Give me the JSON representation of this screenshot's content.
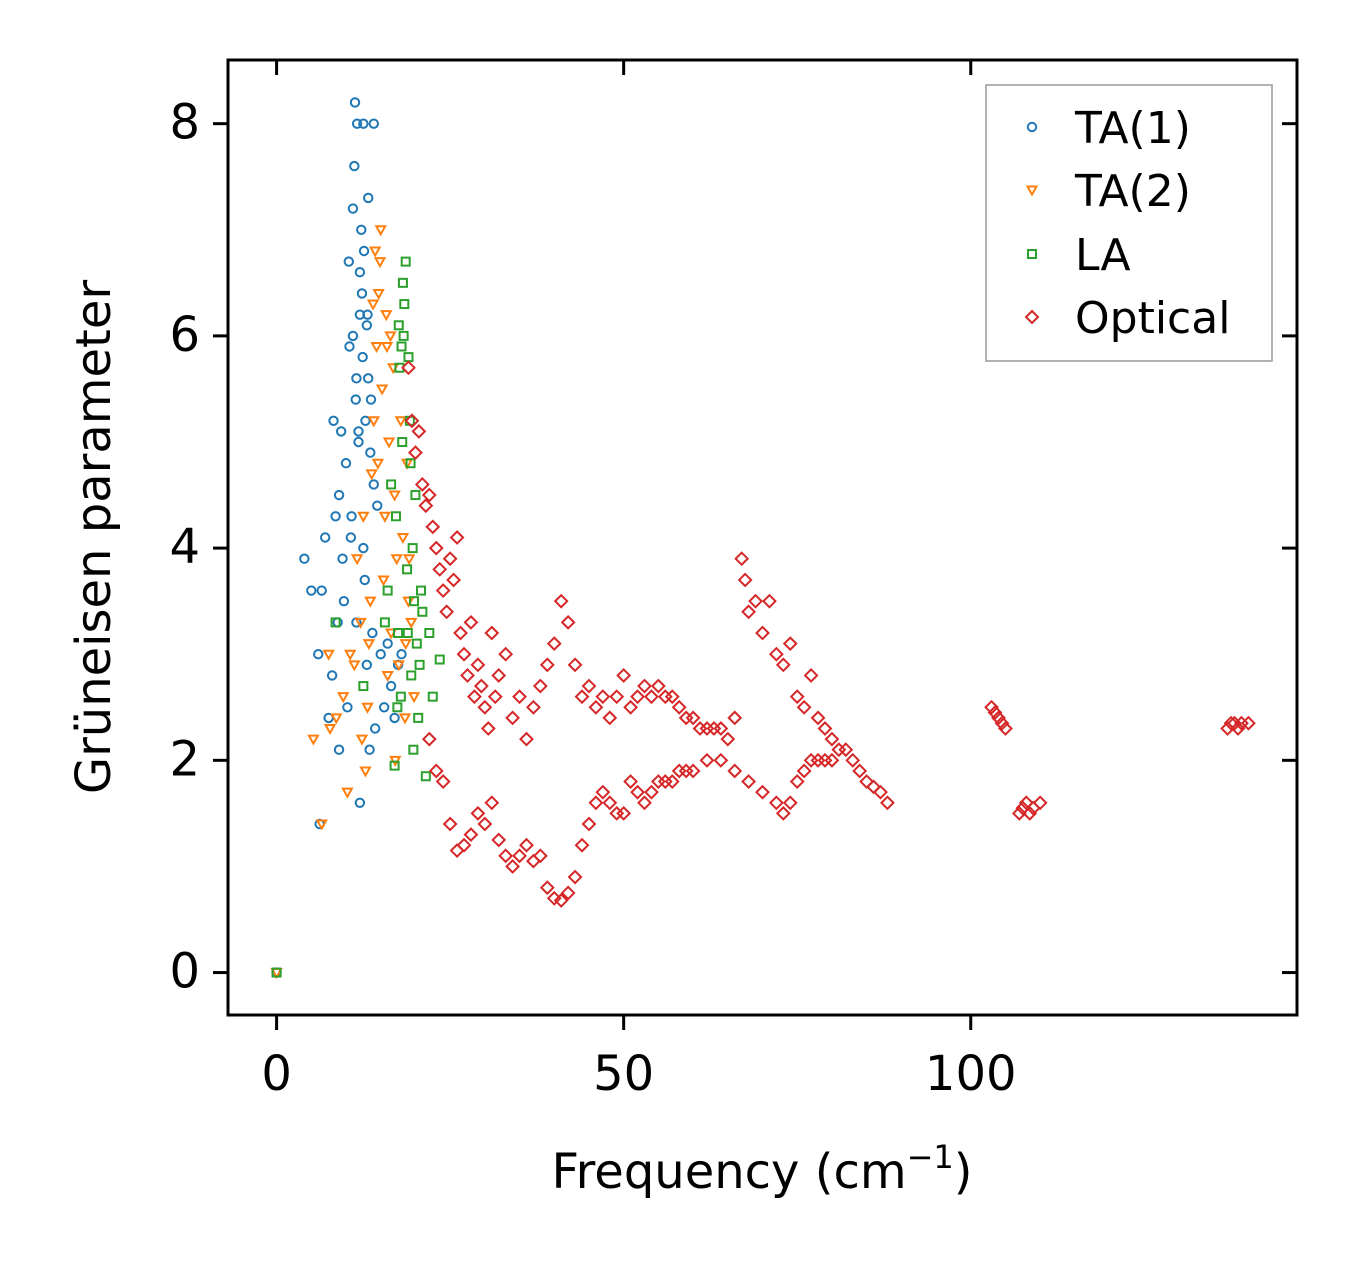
{
  "chart_data": {
    "type": "scatter",
    "title": "",
    "xlabel": "Frequency (cm",
    "xlabel_sup": "−1",
    "xlabel_close": ")",
    "ylabel": "Grüneisen parameter",
    "xlim": [
      -7,
      147
    ],
    "ylim": [
      -0.4,
      8.6
    ],
    "xticks": [
      0,
      50,
      100
    ],
    "yticks": [
      0,
      2,
      4,
      6,
      8
    ],
    "xtick_labels": [
      "0",
      "50",
      "100"
    ],
    "ytick_labels": [
      "0",
      "2",
      "4",
      "6",
      "8"
    ],
    "legend_position": "top-right",
    "series": [
      {
        "name": "TA(1)",
        "marker": "circle",
        "color": "#1f77b4",
        "points": [
          [
            0,
            0
          ],
          [
            4,
            3.9
          ],
          [
            5,
            3.6
          ],
          [
            6,
            3.0
          ],
          [
            6.2,
            1.4
          ],
          [
            6.5,
            3.6
          ],
          [
            7,
            4.1
          ],
          [
            7.5,
            2.4
          ],
          [
            8,
            2.8
          ],
          [
            8.2,
            5.2
          ],
          [
            8.5,
            4.3
          ],
          [
            8.8,
            3.3
          ],
          [
            9,
            2.1
          ],
          [
            9,
            4.5
          ],
          [
            9.3,
            5.1
          ],
          [
            9.5,
            3.9
          ],
          [
            9.7,
            3.5
          ],
          [
            10,
            4.8
          ],
          [
            10.2,
            2.5
          ],
          [
            10.4,
            6.7
          ],
          [
            10.5,
            5.9
          ],
          [
            10.7,
            4.1
          ],
          [
            11,
            7.2
          ],
          [
            11,
            6.0
          ],
          [
            11.2,
            7.6
          ],
          [
            11.3,
            8.2
          ],
          [
            11.5,
            3.3
          ],
          [
            11.5,
            5.6
          ],
          [
            11.6,
            8.0
          ],
          [
            11.8,
            5.1
          ],
          [
            12,
            6.6
          ],
          [
            12,
            6.2
          ],
          [
            12,
            1.6
          ],
          [
            12.2,
            7.0
          ],
          [
            12.3,
            6.4
          ],
          [
            12.4,
            5.8
          ],
          [
            12.5,
            4.0
          ],
          [
            12.5,
            8.0
          ],
          [
            12.7,
            3.7
          ],
          [
            12.8,
            5.2
          ],
          [
            13,
            6.1
          ],
          [
            13,
            2.9
          ],
          [
            13.2,
            5.6
          ],
          [
            13.2,
            7.3
          ],
          [
            13.4,
            2.1
          ],
          [
            13.5,
            4.9
          ],
          [
            13.6,
            5.4
          ],
          [
            13.8,
            3.2
          ],
          [
            14,
            4.6
          ],
          [
            14,
            8.0
          ],
          [
            14.2,
            2.3
          ],
          [
            14.5,
            4.4
          ],
          [
            15,
            3.0
          ],
          [
            15.5,
            2.5
          ],
          [
            16,
            3.1
          ],
          [
            16.5,
            2.7
          ],
          [
            17,
            2.4
          ],
          [
            17.5,
            2.9
          ],
          [
            18,
            3.0
          ],
          [
            11.8,
            5.0
          ],
          [
            10.8,
            4.3
          ],
          [
            12.6,
            6.8
          ],
          [
            13.1,
            6.2
          ],
          [
            11.4,
            5.4
          ]
        ]
      },
      {
        "name": "TA(2)",
        "marker": "triangle-down",
        "color": "#ff7f0e",
        "points": [
          [
            0,
            0
          ],
          [
            5.3,
            2.2
          ],
          [
            6.5,
            1.4
          ],
          [
            7.5,
            3.0
          ],
          [
            7.7,
            2.3
          ],
          [
            8.6,
            2.4
          ],
          [
            9.6,
            2.6
          ],
          [
            10.2,
            1.7
          ],
          [
            10.6,
            3.0
          ],
          [
            11.2,
            2.9
          ],
          [
            11.6,
            3.9
          ],
          [
            12.1,
            3.3
          ],
          [
            12.5,
            4.3
          ],
          [
            12.8,
            1.9
          ],
          [
            13.1,
            2.5
          ],
          [
            13.5,
            3.5
          ],
          [
            13.7,
            4.7
          ],
          [
            14,
            5.2
          ],
          [
            14.2,
            6.8
          ],
          [
            14.4,
            5.9
          ],
          [
            14.6,
            4.8
          ],
          [
            14.7,
            6.4
          ],
          [
            15,
            7.0
          ],
          [
            15.2,
            5.5
          ],
          [
            15.4,
            3.7
          ],
          [
            15.6,
            4.3
          ],
          [
            15.8,
            6.2
          ],
          [
            16,
            2.8
          ],
          [
            16.2,
            5.0
          ],
          [
            16.5,
            3.2
          ],
          [
            16.8,
            5.7
          ],
          [
            17,
            4.5
          ],
          [
            17.3,
            3.9
          ],
          [
            17.6,
            2.9
          ],
          [
            17.9,
            5.2
          ],
          [
            18.2,
            4.1
          ],
          [
            18.5,
            2.4
          ],
          [
            18.8,
            4.8
          ],
          [
            19,
            3.5
          ],
          [
            19.4,
            3.3
          ],
          [
            19.8,
            2.6
          ],
          [
            14.9,
            6.7
          ],
          [
            13.9,
            6.3
          ],
          [
            15.9,
            5.9
          ],
          [
            16.4,
            6.0
          ],
          [
            17.1,
            2.0
          ],
          [
            13.3,
            3.1
          ],
          [
            12.3,
            2.2
          ],
          [
            18.6,
            3.1
          ],
          [
            19.1,
            3.9
          ]
        ]
      },
      {
        "name": "LA",
        "marker": "square",
        "color": "#2ca02c",
        "points": [
          [
            0,
            0
          ],
          [
            8.5,
            3.3
          ],
          [
            12.5,
            2.7
          ],
          [
            15.6,
            3.3
          ],
          [
            16,
            3.6
          ],
          [
            16.5,
            4.6
          ],
          [
            17,
            1.95
          ],
          [
            17.2,
            4.3
          ],
          [
            17.5,
            3.2
          ],
          [
            17.7,
            5.7
          ],
          [
            17.9,
            2.6
          ],
          [
            18,
            5.9
          ],
          [
            18.2,
            6.5
          ],
          [
            18.4,
            6.3
          ],
          [
            18.6,
            6.7
          ],
          [
            18.8,
            3.8
          ],
          [
            19,
            5.8
          ],
          [
            19.2,
            5.2
          ],
          [
            19.4,
            2.8
          ],
          [
            19.6,
            4.0
          ],
          [
            19.8,
            3.5
          ],
          [
            20,
            4.5
          ],
          [
            20.2,
            3.1
          ],
          [
            20.4,
            2.4
          ],
          [
            20.6,
            2.9
          ],
          [
            21,
            3.4
          ],
          [
            21.5,
            1.85
          ],
          [
            22,
            3.2
          ],
          [
            22.5,
            2.6
          ],
          [
            23.5,
            2.95
          ],
          [
            18.1,
            5.0
          ],
          [
            18.3,
            6.0
          ],
          [
            17.6,
            6.1
          ],
          [
            18.9,
            3.2
          ],
          [
            19.3,
            4.8
          ],
          [
            20.8,
            3.6
          ],
          [
            17.4,
            2.5
          ],
          [
            19.7,
            2.1
          ]
        ]
      },
      {
        "name": "Optical",
        "marker": "diamond",
        "color": "#d62728",
        "points": [
          [
            19,
            5.7
          ],
          [
            19.5,
            5.2
          ],
          [
            20,
            4.9
          ],
          [
            20.5,
            5.1
          ],
          [
            21,
            4.6
          ],
          [
            21.5,
            4.4
          ],
          [
            22,
            4.5
          ],
          [
            22.5,
            4.2
          ],
          [
            23,
            4.0
          ],
          [
            23.5,
            3.8
          ],
          [
            24,
            3.6
          ],
          [
            24.5,
            3.4
          ],
          [
            25,
            3.9
          ],
          [
            25.5,
            3.7
          ],
          [
            26,
            4.1
          ],
          [
            26.5,
            3.2
          ],
          [
            27,
            3.0
          ],
          [
            27.5,
            2.8
          ],
          [
            28,
            3.3
          ],
          [
            28.5,
            2.6
          ],
          [
            29,
            2.9
          ],
          [
            29.5,
            2.7
          ],
          [
            30,
            2.5
          ],
          [
            30.5,
            2.3
          ],
          [
            31,
            3.2
          ],
          [
            31.5,
            2.6
          ],
          [
            32,
            2.8
          ],
          [
            33,
            3.0
          ],
          [
            34,
            2.4
          ],
          [
            35,
            2.6
          ],
          [
            36,
            2.2
          ],
          [
            37,
            2.5
          ],
          [
            38,
            2.7
          ],
          [
            39,
            2.9
          ],
          [
            40,
            3.1
          ],
          [
            41,
            3.5
          ],
          [
            42,
            3.3
          ],
          [
            43,
            2.9
          ],
          [
            44,
            2.6
          ],
          [
            45,
            2.7
          ],
          [
            46,
            2.5
          ],
          [
            47,
            2.6
          ],
          [
            48,
            2.4
          ],
          [
            49,
            2.6
          ],
          [
            50,
            2.8
          ],
          [
            51,
            2.5
          ],
          [
            52,
            2.6
          ],
          [
            53,
            2.7
          ],
          [
            54,
            2.6
          ],
          [
            55,
            2.7
          ],
          [
            56,
            2.6
          ],
          [
            57,
            2.6
          ],
          [
            58,
            2.5
          ],
          [
            59,
            2.4
          ],
          [
            60,
            2.4
          ],
          [
            61,
            2.3
          ],
          [
            62,
            2.3
          ],
          [
            63,
            2.3
          ],
          [
            64,
            2.3
          ],
          [
            65,
            2.2
          ],
          [
            66,
            2.4
          ],
          [
            67,
            3.9
          ],
          [
            67.5,
            3.7
          ],
          [
            68,
            3.4
          ],
          [
            69,
            3.5
          ],
          [
            70,
            3.2
          ],
          [
            71,
            3.5
          ],
          [
            72,
            3.0
          ],
          [
            73,
            2.9
          ],
          [
            74,
            3.1
          ],
          [
            75,
            2.6
          ],
          [
            76,
            2.5
          ],
          [
            77,
            2.8
          ],
          [
            78,
            2.4
          ],
          [
            79,
            2.3
          ],
          [
            80,
            2.2
          ],
          [
            81,
            2.1
          ],
          [
            82,
            2.1
          ],
          [
            83,
            2.0
          ],
          [
            84,
            1.9
          ],
          [
            85,
            1.8
          ],
          [
            86,
            1.75
          ],
          [
            87,
            1.7
          ],
          [
            88,
            1.6
          ],
          [
            22,
            2.2
          ],
          [
            23,
            1.9
          ],
          [
            24,
            1.8
          ],
          [
            25,
            1.4
          ],
          [
            26,
            1.15
          ],
          [
            27,
            1.2
          ],
          [
            28,
            1.3
          ],
          [
            29,
            1.5
          ],
          [
            30,
            1.4
          ],
          [
            31,
            1.6
          ],
          [
            32,
            1.25
          ],
          [
            33,
            1.1
          ],
          [
            34,
            1.0
          ],
          [
            35,
            1.1
          ],
          [
            36,
            1.2
          ],
          [
            37,
            1.05
          ],
          [
            38,
            1.1
          ],
          [
            39,
            0.8
          ],
          [
            40,
            0.7
          ],
          [
            41,
            0.68
          ],
          [
            42,
            0.75
          ],
          [
            43,
            0.9
          ],
          [
            44,
            1.2
          ],
          [
            45,
            1.4
          ],
          [
            46,
            1.6
          ],
          [
            47,
            1.7
          ],
          [
            48,
            1.6
          ],
          [
            49,
            1.5
          ],
          [
            50,
            1.5
          ],
          [
            51,
            1.8
          ],
          [
            52,
            1.7
          ],
          [
            53,
            1.6
          ],
          [
            54,
            1.7
          ],
          [
            55,
            1.8
          ],
          [
            56,
            1.8
          ],
          [
            57,
            1.8
          ],
          [
            58,
            1.9
          ],
          [
            59,
            1.9
          ],
          [
            60,
            1.9
          ],
          [
            62,
            2.0
          ],
          [
            64,
            2.0
          ],
          [
            66,
            1.9
          ],
          [
            68,
            1.8
          ],
          [
            70,
            1.7
          ],
          [
            72,
            1.6
          ],
          [
            73,
            1.5
          ],
          [
            74,
            1.6
          ],
          [
            75,
            1.8
          ],
          [
            76,
            1.9
          ],
          [
            77,
            2.0
          ],
          [
            78,
            2.0
          ],
          [
            79,
            2.0
          ],
          [
            80,
            2.0
          ],
          [
            103,
            2.5
          ],
          [
            103.5,
            2.45
          ],
          [
            104,
            2.4
          ],
          [
            104.5,
            2.35
          ],
          [
            105,
            2.3
          ],
          [
            107,
            1.5
          ],
          [
            107.5,
            1.55
          ],
          [
            108,
            1.6
          ],
          [
            108.5,
            1.5
          ],
          [
            109,
            1.55
          ],
          [
            110,
            1.6
          ],
          [
            137,
            2.3
          ],
          [
            137.5,
            2.35
          ],
          [
            138,
            2.35
          ],
          [
            138.5,
            2.3
          ],
          [
            139,
            2.35
          ],
          [
            140,
            2.35
          ]
        ]
      }
    ]
  }
}
